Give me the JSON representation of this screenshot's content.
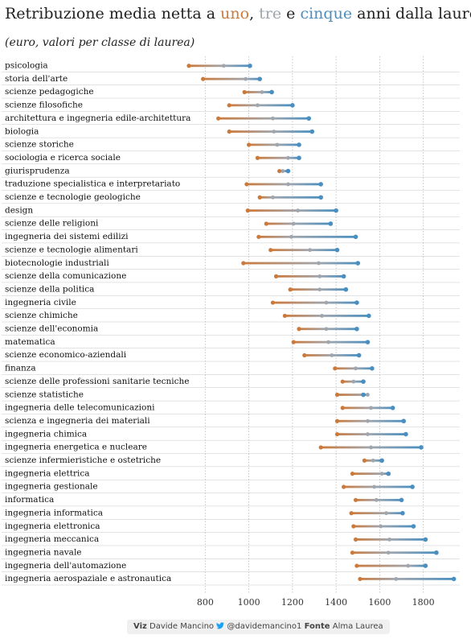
{
  "header": {
    "title_prefix": "Retribuzione media netta a ",
    "title_uno": "uno",
    "title_sep1": ", ",
    "title_tre": "tre",
    "title_sep2": " e ",
    "title_cinque": "cinque",
    "title_suffix": " anni dalla laurea",
    "subtitle": "(euro, valori per classe di laurea)"
  },
  "footer": {
    "viz_label": "Viz",
    "viz_name": "Davide Mancino",
    "twitter_icon": "twitter-bird-icon",
    "handle": "@davidemancino1",
    "source_label": "Fonte",
    "source_name": "Alma Laurea"
  },
  "colors": {
    "uno": "#cc7a3c",
    "tre": "#a0a6ae",
    "cinque": "#4a8fc0",
    "grid": "#bbbbbb",
    "row_line": "#999999"
  },
  "chart_data": {
    "type": "dumbbell",
    "title": "Retribuzione media netta a uno, tre e cinque anni dalla laurea",
    "subtitle": "(euro, valori per classe di laurea)",
    "x_ticks": [
      800,
      1000,
      1200,
      1400,
      1600,
      1800
    ],
    "xlim": [
      725,
      1945
    ],
    "grid": "vertical dotted",
    "series_order": [
      "uno",
      "tre",
      "cinque"
    ],
    "categories": [
      "psicologia",
      "storia dell'arte",
      "scienze pedagogiche",
      "scienze filosofiche",
      "architettura e ingegneria edile-architettura",
      "biologia",
      "scienze storiche",
      "sociologia e ricerca sociale",
      "giurisprudenza",
      "traduzione specialistica e interpretariato",
      "scienze e tecnologie geologiche",
      "design",
      "scienze delle religioni",
      "ingegneria dei sistemi edilizi",
      "scienze e tecnologie alimentari",
      "biotecnologie industriali",
      "scienze della comunicazione",
      "scienze della politica",
      "ingegneria civile",
      "scienze chimiche",
      "scienze dell'economia",
      "matematica",
      "scienze economico-aziendali",
      "finanza",
      "scienze delle professioni sanitarie tecniche",
      "scienze statistiche",
      "ingegneria delle telecomunicazioni",
      "scienza e ingegneria dei materiali",
      "ingegneria chimica",
      "ingegneria energetica e nucleare",
      "scienze infermieristiche e ostetriche",
      "ingegneria elettrica",
      "ingegneria gestionale",
      "informatica",
      "ingegneria informatica",
      "ingegneria elettronica",
      "ingegneria meccanica",
      "ingegneria navale",
      "ingegneria dell'automazione",
      "ingegneria aerospaziale e astronautica"
    ],
    "uno": [
      725,
      790,
      980,
      910,
      860,
      910,
      1000,
      1040,
      1140,
      990,
      1050,
      995,
      1080,
      1045,
      1100,
      975,
      1125,
      1190,
      1110,
      1165,
      1230,
      1205,
      1255,
      1395,
      1430,
      1405,
      1430,
      1405,
      1405,
      1330,
      1530,
      1475,
      1435,
      1490,
      1470,
      1480,
      1490,
      1475,
      1495,
      1510
    ],
    "tre": [
      885,
      985,
      1060,
      1040,
      1110,
      1115,
      1130,
      1180,
      1155,
      1180,
      1110,
      1225,
      1205,
      1195,
      1280,
      1320,
      1325,
      1325,
      1355,
      1335,
      1355,
      1365,
      1380,
      1490,
      1480,
      1545,
      1560,
      1545,
      1545,
      1560,
      1570,
      1610,
      1575,
      1585,
      1630,
      1605,
      1645,
      1640,
      1730,
      1675
    ],
    "cinque": [
      1005,
      1050,
      1105,
      1200,
      1275,
      1290,
      1230,
      1230,
      1180,
      1330,
      1330,
      1400,
      1375,
      1490,
      1405,
      1500,
      1435,
      1445,
      1495,
      1550,
      1495,
      1545,
      1505,
      1565,
      1525,
      1525,
      1660,
      1710,
      1720,
      1790,
      1610,
      1640,
      1750,
      1700,
      1705,
      1755,
      1810,
      1860,
      1810,
      1940
    ]
  }
}
